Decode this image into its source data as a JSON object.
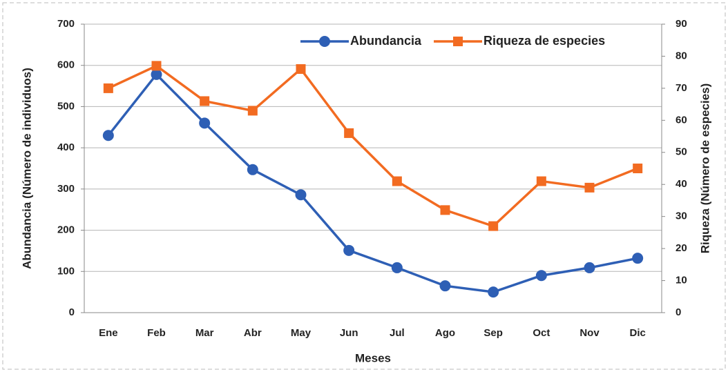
{
  "chart_data": {
    "type": "line",
    "xlabel": "Meses",
    "ylabel": "Abundancia (Número de individuos)",
    "y2label": "Riqueza (Número de especies)",
    "categories": [
      "Ene",
      "Feb",
      "Mar",
      "Abr",
      "May",
      "Jun",
      "Jul",
      "Ago",
      "Sep",
      "Oct",
      "Nov",
      "Dic"
    ],
    "series": [
      {
        "name": "Abundancia",
        "color": "#2e5fb5",
        "marker": "circle",
        "axis": "y",
        "values": [
          430,
          578,
          460,
          347,
          286,
          151,
          109,
          65,
          50,
          90,
          109,
          132
        ]
      },
      {
        "name": "Riqueza de especies",
        "color": "#f26b21",
        "marker": "square",
        "axis": "y2",
        "values": [
          70,
          77,
          66,
          63,
          76,
          56,
          41,
          32,
          27,
          41,
          39,
          45
        ]
      }
    ],
    "ylim": [
      0,
      700
    ],
    "yticks": [
      0,
      100,
      200,
      300,
      400,
      500,
      600,
      700
    ],
    "y2lim": [
      0,
      90
    ],
    "y2ticks": [
      0,
      10,
      20,
      30,
      40,
      50,
      60,
      70,
      80,
      90
    ],
    "grid": true,
    "legend": "top"
  }
}
